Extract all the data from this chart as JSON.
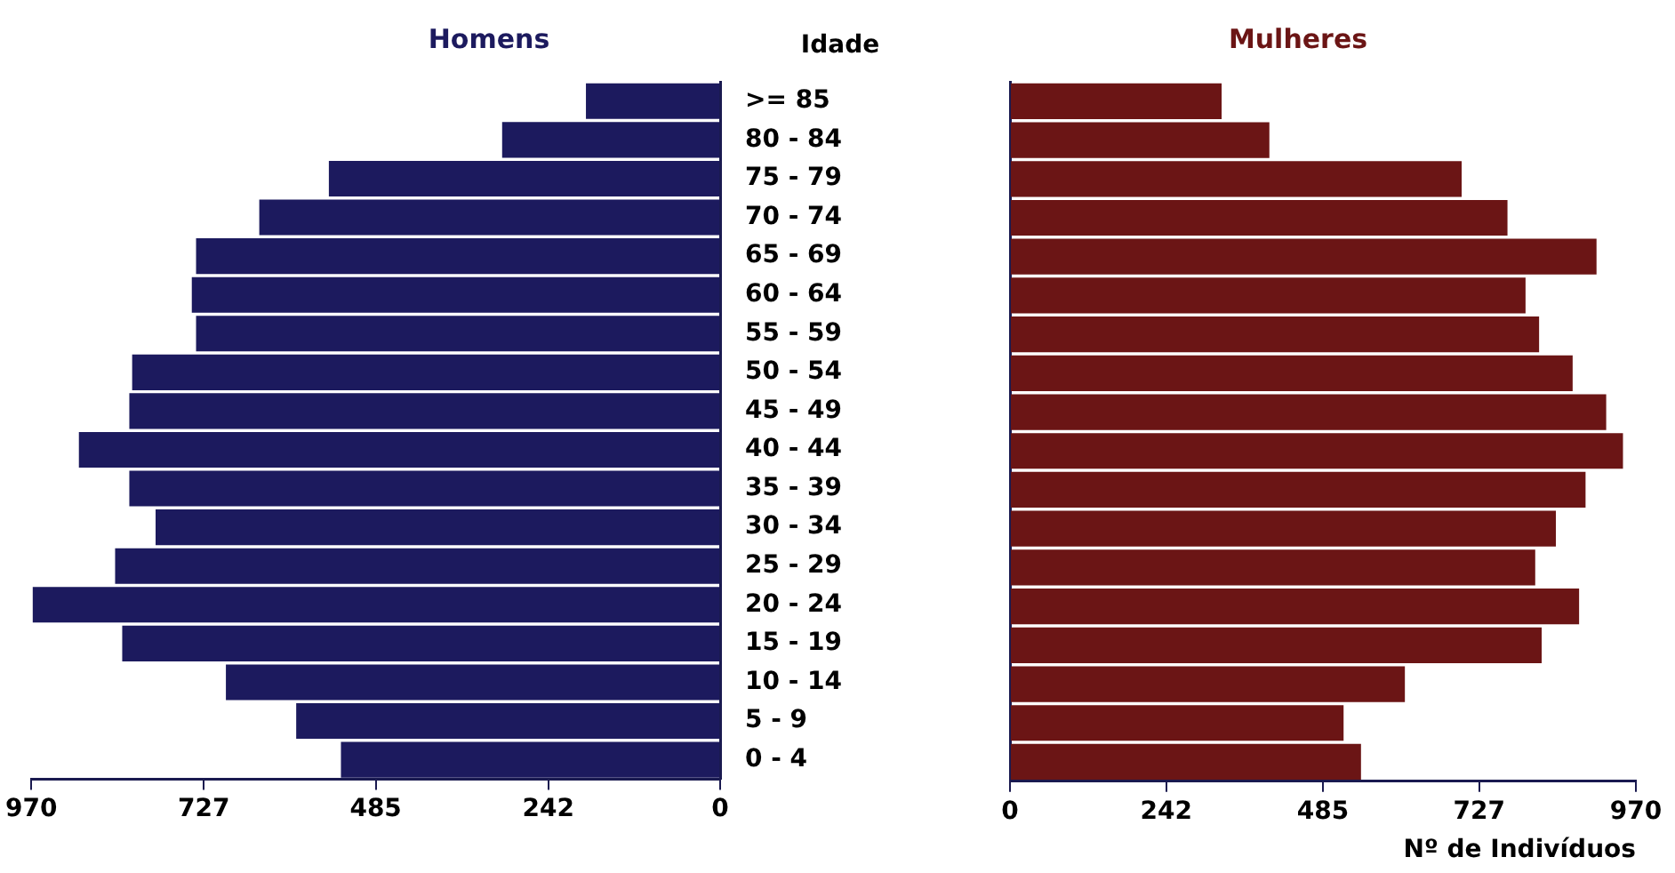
{
  "chart_data": [
    {
      "type": "bar",
      "orientation": "horizontal",
      "title": "Homens",
      "ylabel": "Idade",
      "categories": [
        ">= 85",
        "80 - 84",
        "75 - 79",
        "70 - 74",
        "65 - 69",
        "60 - 64",
        "55 - 59",
        "50 - 54",
        "45 - 49",
        "40 - 44",
        "35 - 39",
        "30 - 34",
        "25 - 29",
        "20 - 24",
        "15 - 19",
        "10 - 14",
        "5 - 9",
        "0 - 4"
      ],
      "values": [
        189,
        307,
        551,
        649,
        738,
        744,
        738,
        828,
        832,
        903,
        832,
        795,
        852,
        968,
        842,
        696,
        597,
        534
      ],
      "color": "#1c1a5e",
      "xlim": [
        970,
        0
      ],
      "xticks": [
        970,
        727,
        485,
        242,
        0
      ],
      "grid": false
    },
    {
      "type": "bar",
      "orientation": "horizontal",
      "title": "Mulheres",
      "xlabel": "Nº de Indivíduos",
      "categories": [
        null,
        null,
        null,
        null,
        null,
        null,
        null,
        null,
        null,
        null,
        null,
        null,
        null,
        null,
        null,
        null,
        null,
        null
      ],
      "values": [
        328,
        402,
        700,
        771,
        909,
        799,
        820,
        872,
        924,
        950,
        892,
        846,
        814,
        882,
        824,
        612,
        517,
        544
      ],
      "color": "#6b1515",
      "xlim": [
        0,
        970
      ],
      "xticks": [
        0,
        242,
        485,
        727,
        970
      ],
      "grid": false
    }
  ]
}
